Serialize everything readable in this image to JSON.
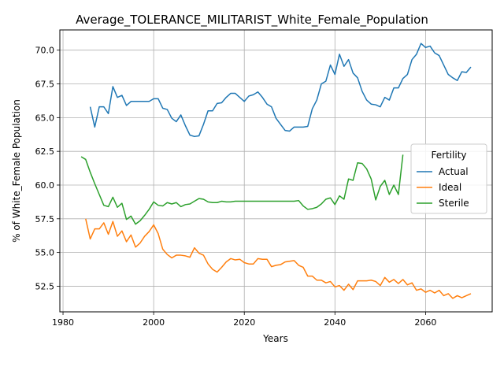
{
  "chart_data": {
    "type": "line",
    "title": "Average_TOLERANCE_MILITARIST_White_Female_Population",
    "xlabel": "Years",
    "ylabel": "% of White_Female Population",
    "xlim": [
      1979.3,
      2074.7
    ],
    "ylim": [
      50.6,
      71.5
    ],
    "xticks": [
      1980,
      2000,
      2020,
      2040,
      2060
    ],
    "xtick_labels": [
      "1980",
      "2000",
      "2020",
      "2040",
      "2060"
    ],
    "yticks": [
      52.5,
      55.0,
      57.5,
      60.0,
      62.5,
      65.0,
      67.5,
      70.0
    ],
    "ytick_labels": [
      "52.5",
      "55.0",
      "57.5",
      "60.0",
      "62.5",
      "65.0",
      "67.5",
      "70.0"
    ],
    "grid": true,
    "legend": {
      "title": "Fertility",
      "placement": "center-right"
    },
    "series": [
      {
        "name": "Actual",
        "color": "#1f77b4",
        "x": [
          1986,
          1987,
          1988,
          1989,
          1990,
          1991,
          1992,
          1993,
          1994,
          1995,
          1996,
          1997,
          1998,
          1999,
          2000,
          2001,
          2002,
          2003,
          2004,
          2005,
          2006,
          2007,
          2008,
          2009,
          2010,
          2011,
          2012,
          2013,
          2014,
          2015,
          2016,
          2017,
          2018,
          2019,
          2020,
          2021,
          2022,
          2023,
          2024,
          2025,
          2026,
          2027,
          2028,
          2029,
          2030,
          2031,
          2032,
          2033,
          2034,
          2035,
          2036,
          2037,
          2038,
          2039,
          2040,
          2041,
          2042,
          2043,
          2044,
          2045,
          2046,
          2047,
          2048,
          2049,
          2050,
          2051,
          2052,
          2053,
          2054,
          2055,
          2056,
          2057,
          2058,
          2059,
          2060,
          2061,
          2062,
          2063,
          2064,
          2065,
          2066,
          2067,
          2068,
          2069,
          2070
        ],
        "y": [
          65.8,
          64.3,
          65.8,
          65.8,
          65.3,
          67.3,
          66.5,
          66.65,
          65.9,
          66.2,
          66.2,
          66.2,
          66.2,
          66.2,
          66.4,
          66.4,
          65.7,
          65.6,
          64.95,
          64.7,
          65.2,
          64.4,
          63.7,
          63.6,
          63.65,
          64.5,
          65.5,
          65.5,
          66.05,
          66.1,
          66.5,
          66.8,
          66.8,
          66.5,
          66.2,
          66.6,
          66.7,
          66.9,
          66.5,
          66.0,
          65.8,
          64.95,
          64.5,
          64.05,
          64.0,
          64.3,
          64.3,
          64.3,
          64.35,
          65.65,
          66.3,
          67.5,
          67.7,
          68.9,
          68.2,
          69.7,
          68.8,
          69.3,
          68.3,
          67.95,
          66.95,
          66.3,
          66.0,
          65.95,
          65.8,
          66.5,
          66.3,
          67.2,
          67.2,
          67.9,
          68.2,
          69.3,
          69.7,
          70.5,
          70.2,
          70.3,
          69.8,
          69.6,
          68.9,
          68.2,
          67.95,
          67.75,
          68.4,
          68.35,
          68.75
        ]
      },
      {
        "name": "Ideal",
        "color": "#ff7f0e",
        "x": [
          1985,
          1986,
          1987,
          1988,
          1989,
          1990,
          1991,
          1992,
          1993,
          1994,
          1995,
          1996,
          1997,
          1998,
          1999,
          2000,
          2001,
          2002,
          2003,
          2004,
          2005,
          2006,
          2007,
          2008,
          2009,
          2010,
          2011,
          2012,
          2013,
          2014,
          2015,
          2016,
          2017,
          2018,
          2019,
          2020,
          2021,
          2022,
          2023,
          2024,
          2025,
          2026,
          2027,
          2028,
          2029,
          2030,
          2031,
          2032,
          2033,
          2034,
          2035,
          2036,
          2037,
          2038,
          2039,
          2040,
          2041,
          2042,
          2043,
          2044,
          2045,
          2046,
          2047,
          2048,
          2049,
          2050,
          2051,
          2052,
          2053,
          2054,
          2055,
          2056,
          2057,
          2058,
          2059,
          2060,
          2061,
          2062,
          2063,
          2064,
          2065,
          2066,
          2067,
          2068,
          2069,
          2070
        ],
        "y": [
          57.5,
          56.0,
          56.75,
          56.75,
          57.2,
          56.35,
          57.3,
          56.2,
          56.6,
          55.8,
          56.3,
          55.4,
          55.7,
          56.2,
          56.55,
          57.05,
          56.4,
          55.25,
          54.85,
          54.6,
          54.8,
          54.8,
          54.75,
          54.65,
          55.35,
          54.95,
          54.8,
          54.15,
          53.75,
          53.55,
          53.9,
          54.3,
          54.55,
          54.45,
          54.5,
          54.25,
          54.15,
          54.15,
          54.55,
          54.5,
          54.5,
          53.95,
          54.05,
          54.1,
          54.3,
          54.35,
          54.4,
          54.05,
          53.9,
          53.25,
          53.25,
          52.95,
          52.95,
          52.75,
          52.85,
          52.45,
          52.55,
          52.2,
          52.65,
          52.25,
          52.9,
          52.9,
          52.9,
          52.95,
          52.85,
          52.55,
          53.15,
          52.8,
          53.0,
          52.7,
          53.0,
          52.6,
          52.75,
          52.2,
          52.3,
          52.05,
          52.2,
          52.0,
          52.2,
          51.8,
          51.95,
          51.6,
          51.8,
          51.65,
          51.8,
          51.95
        ]
      },
      {
        "name": "Sterile",
        "color": "#2ca02c",
        "x": [
          1984,
          1985,
          1986,
          1987,
          1988,
          1989,
          1990,
          1991,
          1992,
          1993,
          1994,
          1995,
          1996,
          1997,
          1998,
          1999,
          2000,
          2001,
          2002,
          2003,
          2004,
          2005,
          2006,
          2007,
          2008,
          2009,
          2010,
          2011,
          2012,
          2013,
          2014,
          2015,
          2016,
          2017,
          2018,
          2019,
          2020,
          2021,
          2022,
          2023,
          2024,
          2025,
          2026,
          2027,
          2028,
          2029,
          2030,
          2031,
          2032,
          2033,
          2034,
          2035,
          2036,
          2037,
          2038,
          2039,
          2040,
          2041,
          2042,
          2043,
          2044,
          2045,
          2046,
          2047,
          2048,
          2049,
          2050,
          2051,
          2052,
          2053,
          2054,
          2055
        ],
        "y": [
          62.1,
          61.9,
          60.95,
          60.1,
          59.3,
          58.5,
          58.4,
          59.1,
          58.35,
          58.65,
          57.45,
          57.7,
          57.1,
          57.35,
          57.75,
          58.2,
          58.75,
          58.5,
          58.45,
          58.7,
          58.6,
          58.7,
          58.4,
          58.55,
          58.6,
          58.8,
          59.0,
          58.95,
          58.75,
          58.7,
          58.7,
          58.8,
          58.75,
          58.75,
          58.8,
          58.8,
          58.8,
          58.8,
          58.8,
          58.8,
          58.8,
          58.8,
          58.8,
          58.8,
          58.8,
          58.8,
          58.8,
          58.8,
          58.85,
          58.45,
          58.2,
          58.25,
          58.35,
          58.6,
          58.95,
          59.05,
          58.55,
          59.2,
          58.95,
          60.45,
          60.35,
          61.65,
          61.6,
          61.2,
          60.45,
          58.9,
          59.9,
          60.35,
          59.3,
          60.0,
          59.3,
          62.25
        ]
      }
    ]
  }
}
